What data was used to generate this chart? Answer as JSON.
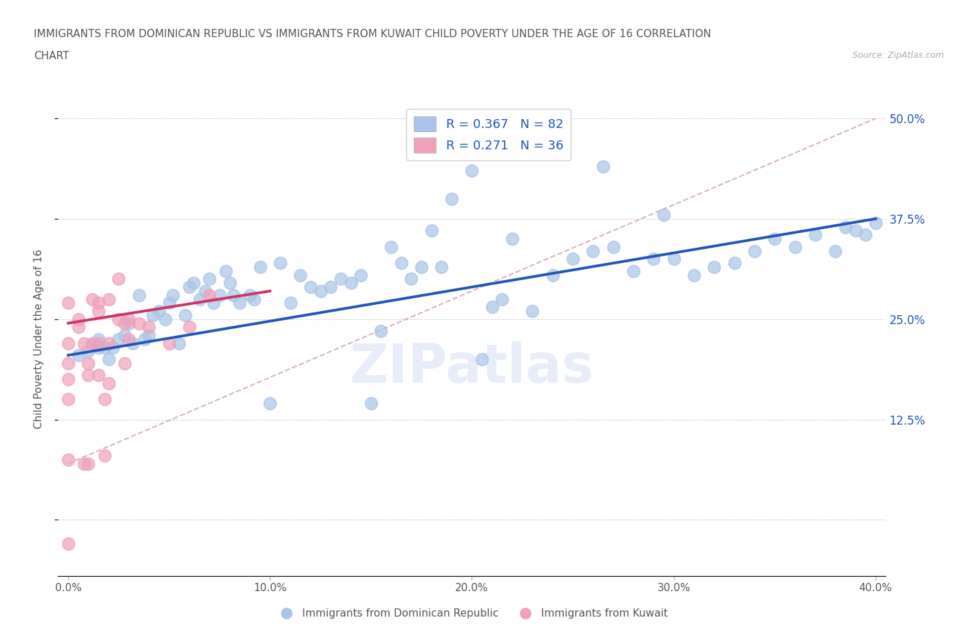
{
  "title_line1": "IMMIGRANTS FROM DOMINICAN REPUBLIC VS IMMIGRANTS FROM KUWAIT CHILD POVERTY UNDER THE AGE OF 16 CORRELATION",
  "title_line2": "CHART",
  "source": "Source: ZipAtlas.com",
  "ylabel": "Child Poverty Under the Age of 16",
  "r_blue": 0.367,
  "n_blue": 82,
  "r_pink": 0.271,
  "n_pink": 36,
  "xlim": [
    -0.005,
    0.405
  ],
  "ylim": [
    -0.07,
    0.52
  ],
  "yticks": [
    0.0,
    0.125,
    0.25,
    0.375,
    0.5
  ],
  "xticks": [
    0.0,
    0.1,
    0.2,
    0.3,
    0.4
  ],
  "xtick_labels": [
    "0.0%",
    "10.0%",
    "20.0%",
    "30.0%",
    "40.0%"
  ],
  "ytick_labels_right": [
    "",
    "12.5%",
    "25.0%",
    "37.5%",
    "50.0%"
  ],
  "blue_color": "#a8c4e8",
  "pink_color": "#f0a0b8",
  "trend_blue": "#2255bb",
  "trend_pink": "#cc3366",
  "ref_line_color": "#d0a0a8",
  "watermark": "ZIPatlas",
  "blue_scatter_x": [
    0.005,
    0.01,
    0.013,
    0.015,
    0.015,
    0.018,
    0.02,
    0.022,
    0.025,
    0.028,
    0.03,
    0.032,
    0.035,
    0.038,
    0.04,
    0.042,
    0.045,
    0.048,
    0.05,
    0.052,
    0.055,
    0.058,
    0.06,
    0.062,
    0.065,
    0.068,
    0.07,
    0.072,
    0.075,
    0.078,
    0.08,
    0.082,
    0.085,
    0.09,
    0.092,
    0.095,
    0.1,
    0.105,
    0.11,
    0.115,
    0.12,
    0.125,
    0.13,
    0.135,
    0.14,
    0.145,
    0.15,
    0.155,
    0.16,
    0.165,
    0.17,
    0.175,
    0.18,
    0.185,
    0.19,
    0.2,
    0.205,
    0.21,
    0.215,
    0.22,
    0.23,
    0.24,
    0.25,
    0.26,
    0.265,
    0.27,
    0.28,
    0.29,
    0.295,
    0.3,
    0.31,
    0.32,
    0.33,
    0.34,
    0.35,
    0.36,
    0.37,
    0.38,
    0.385,
    0.39,
    0.395,
    0.4
  ],
  "blue_scatter_y": [
    0.205,
    0.21,
    0.22,
    0.215,
    0.225,
    0.215,
    0.2,
    0.215,
    0.225,
    0.23,
    0.245,
    0.22,
    0.28,
    0.225,
    0.23,
    0.255,
    0.26,
    0.25,
    0.27,
    0.28,
    0.22,
    0.255,
    0.29,
    0.295,
    0.275,
    0.285,
    0.3,
    0.27,
    0.28,
    0.31,
    0.295,
    0.28,
    0.27,
    0.28,
    0.275,
    0.315,
    0.145,
    0.32,
    0.27,
    0.305,
    0.29,
    0.285,
    0.29,
    0.3,
    0.295,
    0.305,
    0.145,
    0.235,
    0.34,
    0.32,
    0.3,
    0.315,
    0.36,
    0.315,
    0.4,
    0.435,
    0.2,
    0.265,
    0.275,
    0.35,
    0.26,
    0.305,
    0.325,
    0.335,
    0.44,
    0.34,
    0.31,
    0.325,
    0.38,
    0.325,
    0.305,
    0.315,
    0.32,
    0.335,
    0.35,
    0.34,
    0.355,
    0.335,
    0.365,
    0.36,
    0.355,
    0.37
  ],
  "pink_scatter_x": [
    0.0,
    0.0,
    0.0,
    0.0,
    0.0,
    0.0,
    0.0,
    0.005,
    0.005,
    0.008,
    0.008,
    0.01,
    0.01,
    0.01,
    0.012,
    0.012,
    0.015,
    0.015,
    0.015,
    0.015,
    0.018,
    0.018,
    0.02,
    0.02,
    0.02,
    0.025,
    0.025,
    0.028,
    0.028,
    0.03,
    0.03,
    0.035,
    0.04,
    0.05,
    0.06,
    0.07
  ],
  "pink_scatter_y": [
    0.27,
    0.22,
    0.195,
    0.175,
    0.15,
    0.075,
    -0.03,
    0.25,
    0.24,
    0.22,
    0.07,
    0.195,
    0.18,
    0.07,
    0.275,
    0.22,
    0.27,
    0.26,
    0.22,
    0.18,
    0.15,
    0.08,
    0.275,
    0.22,
    0.17,
    0.3,
    0.25,
    0.245,
    0.195,
    0.225,
    0.25,
    0.245,
    0.24,
    0.22,
    0.24,
    0.28
  ],
  "trend_blue_x0": 0.0,
  "trend_blue_y0": 0.205,
  "trend_blue_x1": 0.4,
  "trend_blue_y1": 0.375,
  "trend_pink_x0": 0.0,
  "trend_pink_y0": 0.245,
  "trend_pink_x1": 0.1,
  "trend_pink_y1": 0.285,
  "ref_line_x0": 0.0,
  "ref_line_y0": 0.07,
  "ref_line_x1": 0.4,
  "ref_line_y1": 0.5
}
